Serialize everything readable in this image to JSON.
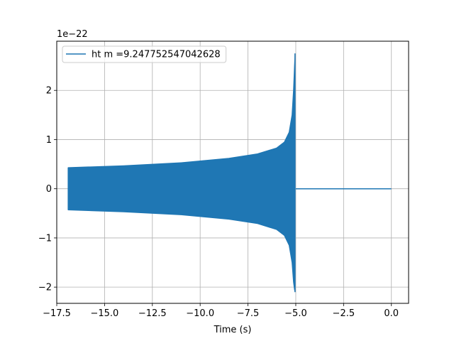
{
  "chart_data": {
    "type": "line",
    "xlabel": "Time (s)",
    "ylabel": "",
    "y_offset_label": "1e−22",
    "xlim": [
      -17.5,
      0.9
    ],
    "ylim": [
      -2.33,
      3.0
    ],
    "grid": true,
    "legend_position": "top-left",
    "x_ticks": [
      {
        "value": -17.5,
        "label": "−17.5"
      },
      {
        "value": -15.0,
        "label": "−15.0"
      },
      {
        "value": -12.5,
        "label": "−12.5"
      },
      {
        "value": -10.0,
        "label": "−10.0"
      },
      {
        "value": -7.5,
        "label": "−7.5"
      },
      {
        "value": -5.0,
        "label": "−5.0"
      },
      {
        "value": -2.5,
        "label": "−2.5"
      },
      {
        "value": 0.0,
        "label": "0.0"
      }
    ],
    "y_ticks": [
      {
        "value": -2,
        "label": "−2"
      },
      {
        "value": -1,
        "label": "−1"
      },
      {
        "value": 0,
        "label": "0"
      },
      {
        "value": 1,
        "label": "1"
      },
      {
        "value": 2,
        "label": "2"
      }
    ],
    "series": [
      {
        "name": "ht m =9.247752547042628",
        "color": "#1f77b4",
        "envelope": {
          "x": [
            -16.9,
            -14.0,
            -11.0,
            -8.5,
            -7.0,
            -6.0,
            -5.6,
            -5.35,
            -5.2,
            -5.12,
            -5.07,
            -5.04
          ],
          "upper": [
            0.43,
            0.47,
            0.53,
            0.62,
            0.71,
            0.83,
            0.95,
            1.15,
            1.5,
            2.0,
            2.5,
            2.75
          ],
          "lower": [
            -0.43,
            -0.47,
            -0.53,
            -0.62,
            -0.71,
            -0.83,
            -0.95,
            -1.15,
            -1.5,
            -1.9,
            -2.05,
            -2.1
          ]
        },
        "tail": {
          "x": [
            -5.0,
            0.0
          ],
          "y": [
            0.0,
            0.0
          ]
        }
      }
    ]
  }
}
